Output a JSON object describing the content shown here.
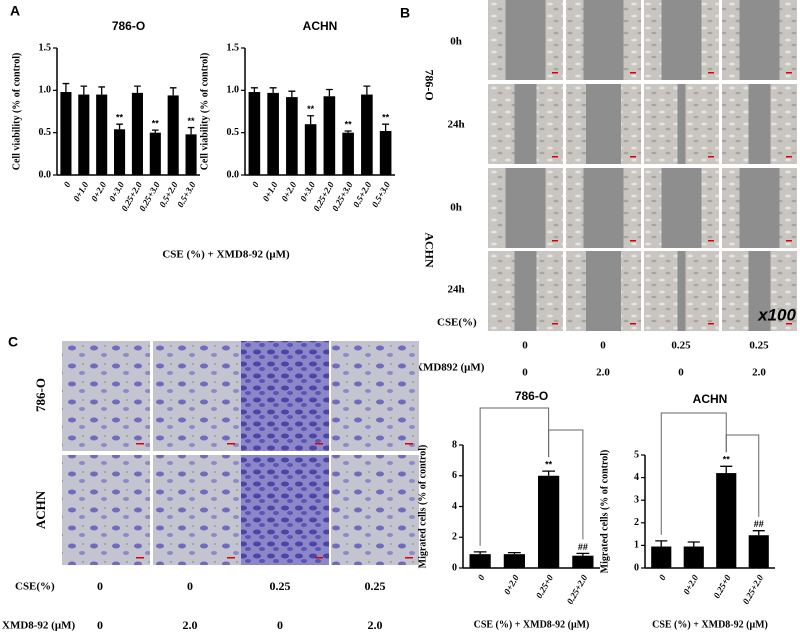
{
  "chart_data": [
    {
      "type": "bar",
      "title": "786-O",
      "ylabel": "Cell viability (% of control)",
      "categories": [
        "0",
        "0+1.0",
        "0+2.0",
        "0+3.0",
        "0.25+2.0",
        "0.25+3.0",
        "0.5+2.0",
        "0.5+3.0"
      ],
      "values": [
        0.98,
        0.95,
        0.95,
        0.54,
        0.97,
        0.5,
        0.94,
        0.48
      ],
      "errors": [
        0.1,
        0.1,
        0.09,
        0.06,
        0.08,
        0.03,
        0.09,
        0.08
      ],
      "annotations": [
        null,
        null,
        null,
        "**",
        null,
        "**",
        null,
        "**"
      ],
      "color": "#000000",
      "ylim": [
        0,
        1.5
      ],
      "yticks": [
        {
          "value": 0,
          "label": "0.0"
        },
        0.5,
        {
          "value": 1,
          "label": "1.0"
        },
        1.5
      ]
    },
    {
      "type": "bar",
      "title": "ACHN",
      "ylabel": "Cell viability (% of control)",
      "categories": [
        "0",
        "0+1.0",
        "0+2.0",
        "0+3.0",
        "0.25+2.0",
        "0.25+3.0",
        "0.5+2.0",
        "0.5+3.0"
      ],
      "values": [
        0.98,
        0.97,
        0.92,
        0.6,
        0.93,
        0.5,
        0.95,
        0.52
      ],
      "errors": [
        0.05,
        0.06,
        0.07,
        0.1,
        0.08,
        0.02,
        0.1,
        0.08
      ],
      "annotations": [
        null,
        null,
        null,
        "**",
        null,
        "**",
        null,
        "**"
      ],
      "color": "#000000",
      "ylim": [
        0,
        1.5
      ],
      "yticks": [
        {
          "value": 0,
          "label": "0.0"
        },
        0.5,
        {
          "value": 1,
          "label": "1.0"
        },
        1.5
      ]
    },
    {
      "type": "bar",
      "title": "786-O",
      "ylabel": "Migrated cells (% of control)",
      "xlabel": "CSE (%) + XMD8-92 (μM)",
      "categories": [
        "0",
        "0+2.0",
        "0.25+0",
        "0.25+2.0"
      ],
      "values": [
        0.9,
        0.9,
        6.0,
        0.8
      ],
      "errors": [
        0.15,
        0.1,
        0.3,
        0.15
      ],
      "annotations": [
        null,
        null,
        "**",
        "##"
      ],
      "color": "#000000",
      "ylim": [
        0,
        8
      ],
      "yticks": [
        0,
        2,
        4,
        6,
        8
      ]
    },
    {
      "type": "bar",
      "title": "ACHN",
      "ylabel": "Migrated cells (% of control)",
      "xlabel": "CSE (%) + XMD8-92 (μM)",
      "categories": [
        "0",
        "0+2.0",
        "0.25+0",
        "0.25+2.0"
      ],
      "values": [
        0.95,
        0.95,
        4.2,
        1.45
      ],
      "errors": [
        0.25,
        0.2,
        0.3,
        0.2
      ],
      "annotations": [
        null,
        null,
        "**",
        "##"
      ],
      "color": "#000000",
      "ylim": [
        0,
        5
      ],
      "yticks": [
        0,
        1,
        2,
        3,
        4,
        5
      ]
    }
  ],
  "figure": {
    "panel_labels": [
      "A",
      "B",
      "C"
    ],
    "panel_a_xlabel": "CSE (%) + XMD8-92 (μM)",
    "panel_b": {
      "time_labels": [
        "0h",
        "24h",
        "0h",
        "24h"
      ],
      "cell_lines": [
        "786-O",
        "ACHN"
      ],
      "magnification": "x100",
      "cse_label": "CSE(%)",
      "cse_values": [
        "0",
        "0",
        "0.25",
        "0.25"
      ],
      "xmd_label": "XMD892 (μM)",
      "xmd_values": [
        "0",
        "2.0",
        "0",
        "2.0"
      ]
    },
    "panel_c": {
      "cell_lines": [
        "786-O",
        "ACHN"
      ],
      "cse_label": "CSE(%)",
      "cse_values": [
        "0",
        "0",
        "0.25",
        "0.25"
      ],
      "xmd_label": "XMD8-92 (μM)",
      "xmd_values": [
        "0",
        "2.0",
        "0",
        "2.0"
      ]
    }
  }
}
